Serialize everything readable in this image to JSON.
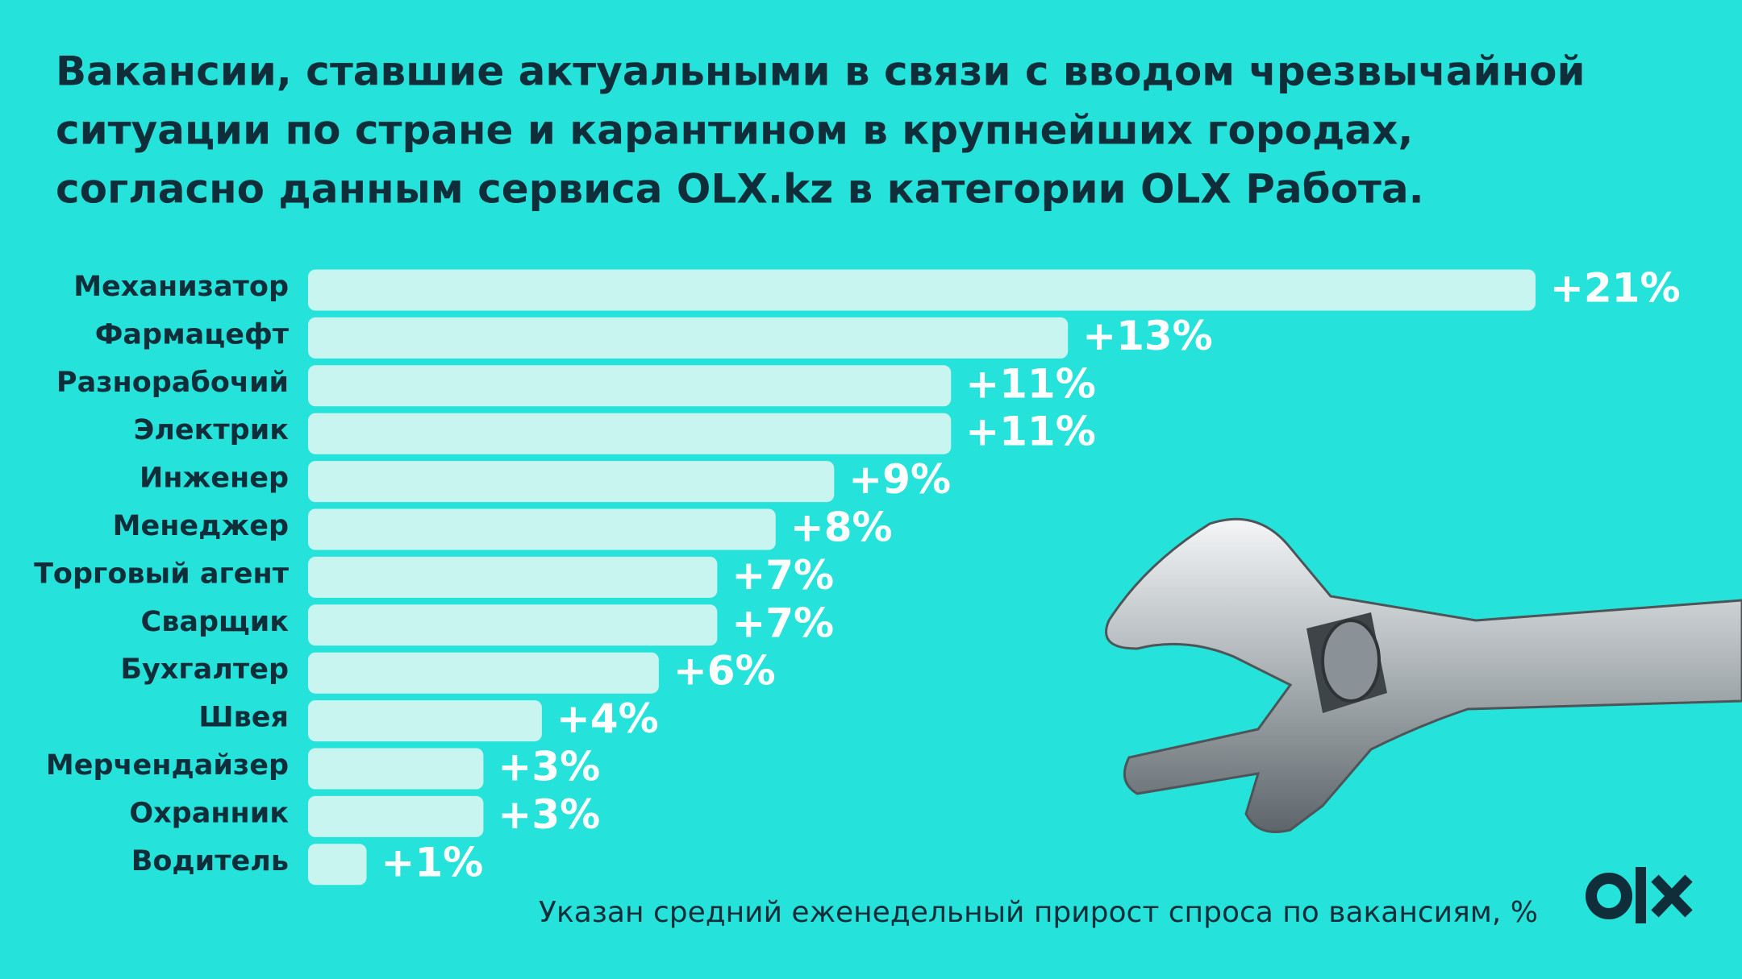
{
  "chart_data": {
    "type": "hbar",
    "title": [
      "Вакансии, ставшие актуальными в связи с вводом чрезвычайной",
      "ситуации по стране и карантином в крупнейших городах,",
      "согласно данным сервиса OLX.kz в категории OLX Работа."
    ],
    "categories": [
      "Механизатор",
      "Фармацефт",
      "Разнорабочий",
      "Электрик",
      "Инженер",
      "Менеджер",
      "Торговый агент",
      "Сварщик",
      "Бухгалтер",
      "Швея",
      "Мерчендайзер",
      "Охранник",
      "Водитель"
    ],
    "values": [
      21,
      13,
      11,
      11,
      9,
      8,
      7,
      7,
      6,
      4,
      3,
      3,
      1
    ],
    "value_labels": [
      "+21%",
      "+13%",
      "+11%",
      "+11%",
      "+9%",
      "+8%",
      "+7%",
      "+7%",
      "+6%",
      "+4%",
      "+3%",
      "+3%",
      "+1%"
    ],
    "color": "#c8f5f0",
    "note": "Указан средний еженедельный прирост спроса по вакансиям, %"
  }
}
